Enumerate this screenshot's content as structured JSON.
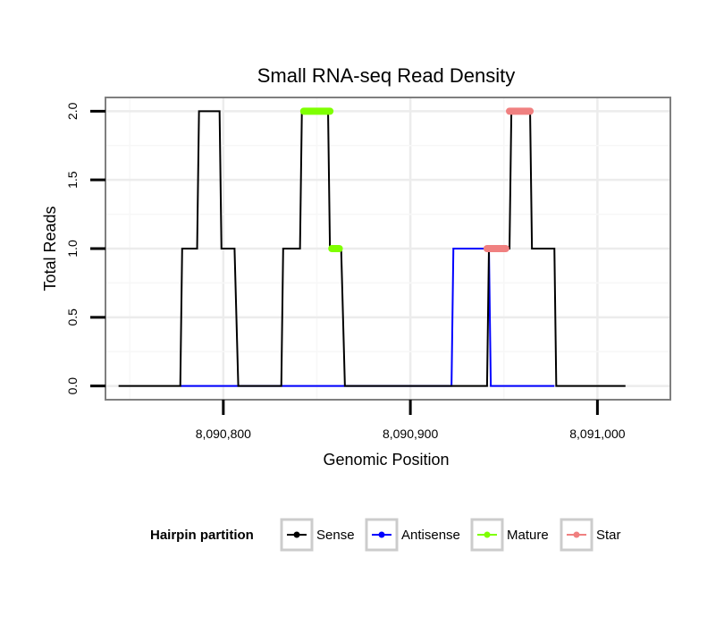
{
  "chart_data": {
    "type": "line",
    "title": "Small RNA-seq Read Density",
    "xlabel": "Genomic Position",
    "ylabel": "Total Reads",
    "xlim": [
      8090737,
      8091039
    ],
    "ylim": [
      -0.1,
      2.1
    ],
    "x_ticks": [
      8090800,
      8090900,
      8091000
    ],
    "x_tick_labels": [
      "8,090,800",
      "8,090,900",
      "8,091,000"
    ],
    "y_ticks": [
      0.0,
      0.5,
      1.0,
      1.5,
      2.0
    ],
    "y_tick_labels": [
      "0.0",
      "0.5",
      "1.0",
      "1.5",
      "2.0"
    ],
    "grid": true,
    "legend": {
      "title": "Hairpin partition",
      "position": "bottom",
      "entries": [
        "Sense",
        "Antisense",
        "Mature",
        "Star"
      ]
    },
    "series": [
      {
        "name": "Sense",
        "color": "#000000",
        "x": [
          8090744,
          8090777,
          8090778,
          8090786,
          8090787,
          8090798,
          8090799,
          8090806,
          8090808,
          8090831,
          8090832,
          8090841,
          8090842,
          8090856,
          8090857,
          8090863,
          8090865,
          8090941,
          8090942,
          8090953,
          8090954,
          8090964,
          8090965,
          8090977,
          8090978,
          8091015
        ],
        "y": [
          0,
          0,
          1,
          1,
          2,
          2,
          1,
          1,
          0,
          0,
          1,
          1,
          2,
          2,
          1,
          1,
          0,
          0,
          1,
          1,
          2,
          2,
          1,
          1,
          0,
          0
        ]
      },
      {
        "name": "Antisense",
        "color": "#0000ff",
        "x": [
          8090777,
          8090922,
          8090923,
          8090942,
          8090943,
          8090977
        ],
        "y": [
          0,
          0,
          1,
          1,
          0,
          0
        ]
      },
      {
        "name": "Mature",
        "color": "#7fff00",
        "segments": [
          {
            "x": [
              8090843,
              8090857
            ],
            "y": [
              2,
              2
            ]
          },
          {
            "x": [
              8090858,
              8090862
            ],
            "y": [
              1,
              1
            ]
          }
        ]
      },
      {
        "name": "Star",
        "color": "#f08080",
        "segments": [
          {
            "x": [
              8090953,
              8090964
            ],
            "y": [
              2,
              2
            ]
          },
          {
            "x": [
              8090941,
              8090951
            ],
            "y": [
              1,
              1
            ]
          }
        ]
      }
    ]
  }
}
